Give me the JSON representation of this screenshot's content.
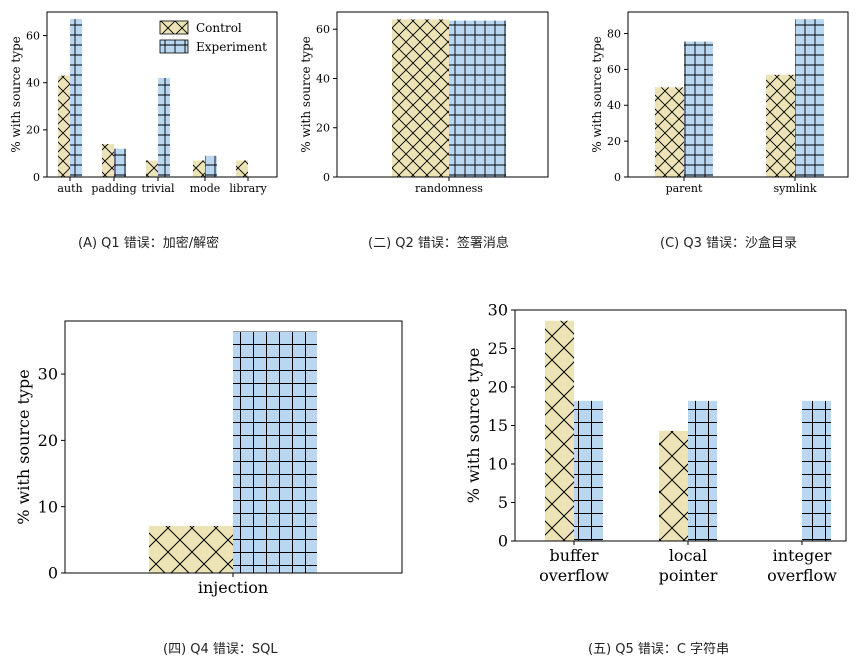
{
  "colors": {
    "control_fill": "#ece4b7",
    "experiment_fill": "#bad7f2",
    "axis": "#000000"
  },
  "captions": {
    "q1": "(A)  Q1 错误：加密/解密",
    "q2": "(二) Q2 错误：签署消息",
    "q3": "(C)  Q3 错误：沙盒目录",
    "q4": "(四) Q4 错误：SQL",
    "q5": "(五)  Q5 错误：C 字符串"
  },
  "chart_data": [
    {
      "id": "q1",
      "type": "bar",
      "ylabel": "% with source type",
      "ylim": [
        0,
        70
      ],
      "yticks": [
        0,
        20,
        40,
        60
      ],
      "categories": [
        "auth",
        "padding",
        "trivial",
        "mode",
        "library"
      ],
      "series": [
        {
          "name": "Control",
          "values": [
            43,
            14,
            7,
            7,
            7
          ]
        },
        {
          "name": "Experiment",
          "values": [
            67,
            12,
            42,
            9,
            0
          ]
        }
      ],
      "legend": {
        "position": "top-center",
        "entries": [
          "Control",
          "Experiment"
        ]
      }
    },
    {
      "id": "q2",
      "type": "bar",
      "ylabel": "% with source type",
      "ylim": [
        0,
        67
      ],
      "yticks": [
        0,
        20,
        40,
        60
      ],
      "categories": [
        "randomness"
      ],
      "series": [
        {
          "name": "Control",
          "values": [
            64
          ]
        },
        {
          "name": "Experiment",
          "values": [
            63.5
          ]
        }
      ]
    },
    {
      "id": "q3",
      "type": "bar",
      "ylabel": "% with source type",
      "ylim": [
        0,
        92
      ],
      "yticks": [
        0,
        20,
        40,
        60,
        80
      ],
      "categories": [
        "parent",
        "symlink"
      ],
      "series": [
        {
          "name": "Control",
          "values": [
            50,
            57
          ]
        },
        {
          "name": "Experiment",
          "values": [
            75.5,
            88
          ]
        }
      ]
    },
    {
      "id": "q4",
      "type": "bar",
      "ylabel": "% with source type",
      "ylim": [
        0,
        38
      ],
      "yticks": [
        0,
        10,
        20,
        30
      ],
      "categories": [
        "injection"
      ],
      "series": [
        {
          "name": "Control",
          "values": [
            7.1
          ]
        },
        {
          "name": "Experiment",
          "values": [
            36.4
          ]
        }
      ]
    },
    {
      "id": "q5",
      "type": "bar",
      "ylabel": "% with source type",
      "ylim": [
        0,
        30
      ],
      "yticks": [
        0,
        5,
        10,
        15,
        20,
        25,
        30
      ],
      "categories": [
        "buffer overflow",
        "local pointer",
        "integer overflow"
      ],
      "series": [
        {
          "name": "Control",
          "values": [
            28.6,
            14.3,
            0
          ]
        },
        {
          "name": "Experiment",
          "values": [
            18.2,
            18.2,
            18.2
          ]
        }
      ]
    }
  ]
}
